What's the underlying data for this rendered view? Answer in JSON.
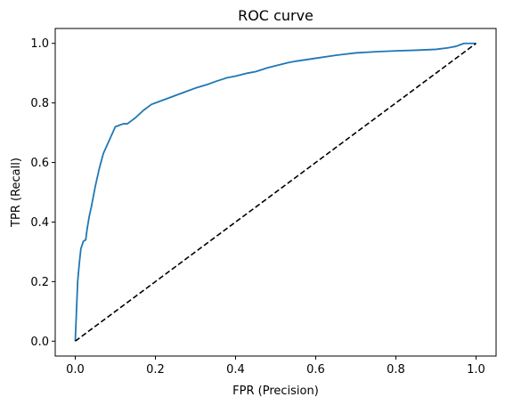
{
  "chart_data": {
    "type": "line",
    "title": "ROC curve",
    "xlabel": "FPR (Precision)",
    "ylabel": "TPR (Recall)",
    "xlim": [
      -0.05,
      1.05
    ],
    "ylim": [
      -0.05,
      1.05
    ],
    "xticks": [
      "0.0",
      "0.2",
      "0.4",
      "0.6",
      "0.8",
      "1.0"
    ],
    "yticks": [
      "0.0",
      "0.2",
      "0.4",
      "0.6",
      "0.8",
      "1.0"
    ],
    "grid": false,
    "series": [
      {
        "color": "#1f77b4",
        "style": "solid",
        "x": [
          0.0,
          0.003,
          0.006,
          0.01,
          0.014,
          0.02,
          0.026,
          0.03,
          0.035,
          0.04,
          0.05,
          0.06,
          0.07,
          0.08,
          0.09,
          0.1,
          0.11,
          0.12,
          0.13,
          0.14,
          0.15,
          0.17,
          0.19,
          0.2,
          0.23,
          0.25,
          0.28,
          0.3,
          0.33,
          0.35,
          0.38,
          0.4,
          0.43,
          0.45,
          0.48,
          0.5,
          0.53,
          0.55,
          0.6,
          0.65,
          0.7,
          0.75,
          0.8,
          0.85,
          0.9,
          0.93,
          0.95,
          0.96,
          0.97,
          0.99,
          1.0
        ],
        "y": [
          0.0,
          0.1,
          0.2,
          0.26,
          0.31,
          0.335,
          0.34,
          0.38,
          0.42,
          0.45,
          0.52,
          0.58,
          0.63,
          0.66,
          0.69,
          0.72,
          0.725,
          0.73,
          0.73,
          0.74,
          0.75,
          0.775,
          0.795,
          0.8,
          0.815,
          0.825,
          0.84,
          0.85,
          0.862,
          0.872,
          0.885,
          0.89,
          0.9,
          0.905,
          0.918,
          0.925,
          0.935,
          0.94,
          0.95,
          0.96,
          0.968,
          0.972,
          0.975,
          0.977,
          0.98,
          0.985,
          0.99,
          0.995,
          1.0,
          1.0,
          1.0
        ]
      },
      {
        "color": "#000000",
        "style": "dashed",
        "x": [
          0.0,
          1.0
        ],
        "y": [
          0.0,
          1.0
        ]
      }
    ]
  }
}
